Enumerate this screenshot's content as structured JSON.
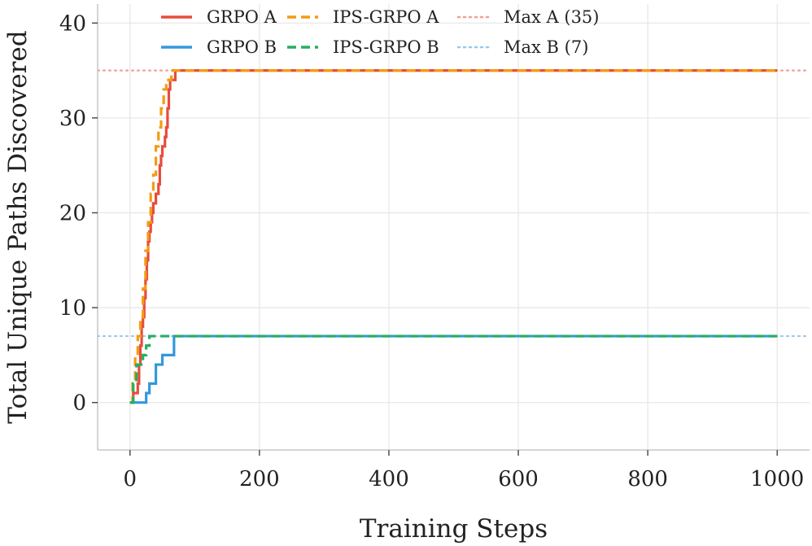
{
  "chart_data": {
    "type": "line",
    "title": "",
    "xlabel": "Training Steps",
    "ylabel": "Total Unique Paths Discovered",
    "xlim": [
      -50,
      1050
    ],
    "ylim": [
      -5,
      42
    ],
    "xticks": [
      0,
      200,
      400,
      600,
      800,
      1000
    ],
    "yticks": [
      0,
      10,
      20,
      30,
      40
    ],
    "xtick_labels": [
      "0",
      "200",
      "400",
      "600",
      "800",
      "1000"
    ],
    "ytick_labels": [
      "0",
      "10",
      "20",
      "30",
      "40"
    ],
    "grid": true,
    "legend_position": "top",
    "series": [
      {
        "name": "GRPO A",
        "color": "#e74c3c",
        "dash": "solid",
        "step": true,
        "x": [
          0,
          5,
          10,
          12,
          14,
          16,
          18,
          20,
          22,
          24,
          26,
          28,
          30,
          32,
          34,
          36,
          38,
          40,
          42,
          44,
          46,
          48,
          50,
          52,
          54,
          56,
          58,
          60,
          62,
          64,
          66,
          68,
          70,
          75,
          1000
        ],
        "y": [
          0,
          1,
          1,
          2,
          4,
          6,
          8,
          9,
          11,
          13,
          15,
          17,
          18,
          19,
          20,
          21,
          21,
          22,
          22,
          23,
          25,
          26,
          27,
          27,
          28,
          29,
          31,
          33,
          34,
          34,
          34,
          34,
          35,
          35,
          35
        ]
      },
      {
        "name": "IPS-GRPO A",
        "color": "#f39c12",
        "dash": "dashed",
        "step": true,
        "x": [
          0,
          4,
          8,
          12,
          16,
          20,
          24,
          28,
          32,
          36,
          40,
          44,
          48,
          52,
          56,
          60,
          64,
          1000
        ],
        "y": [
          0,
          2,
          5,
          7,
          9,
          12,
          16,
          19,
          22,
          24,
          27,
          29,
          31,
          33,
          34,
          34,
          35,
          35
        ]
      },
      {
        "name": "GRPO B",
        "color": "#3498db",
        "dash": "solid",
        "step": true,
        "x": [
          0,
          25,
          30,
          40,
          50,
          60,
          68,
          1000
        ],
        "y": [
          0,
          1,
          2,
          4,
          5,
          5,
          7,
          7
        ]
      },
      {
        "name": "IPS-GRPO B",
        "color": "#27ae60",
        "dash": "dashed",
        "step": true,
        "x": [
          0,
          5,
          10,
          20,
          25,
          30,
          35,
          1000
        ],
        "y": [
          0,
          2,
          4,
          5,
          6,
          7,
          7,
          7
        ]
      },
      {
        "name": "Max A (35)",
        "color": "#f1a097",
        "dash": "dotted",
        "step": false,
        "x": [
          -50,
          1050
        ],
        "y": [
          35,
          35
        ]
      },
      {
        "name": "Max B (7)",
        "color": "#99c9ec",
        "dash": "dotted",
        "step": false,
        "x": [
          -50,
          1050
        ],
        "y": [
          7,
          7
        ]
      }
    ],
    "legend_order": [
      "GRPO A",
      "GRPO B",
      "IPS-GRPO A",
      "IPS-GRPO B",
      "Max A (35)",
      "Max B (7)"
    ]
  }
}
